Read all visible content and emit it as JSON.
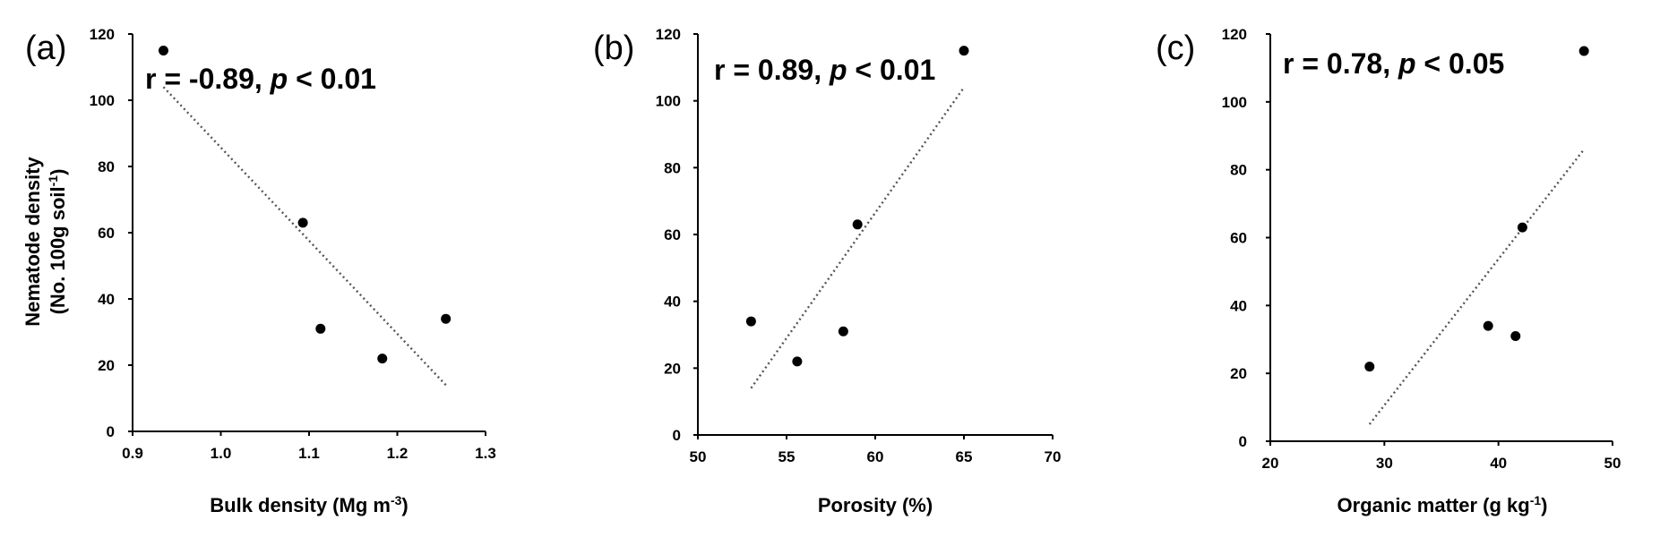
{
  "chart_data": [
    {
      "type": "scatter",
      "panel": "(a)",
      "annotation": {
        "prefix": "r = -0.89, ",
        "italic": "p",
        "suffix": " < 0.01"
      },
      "xlabel": "Bulk density (Mg m",
      "xlabel_sup": "-3",
      "xlabel_end": ")",
      "ylabel": [
        "Nematode density",
        "(No. 100g soil"
      ],
      "ylabel_sup": "-1",
      "ylabel_end": ")",
      "xlim": [
        0.9,
        1.3
      ],
      "ylim": [
        0,
        120
      ],
      "xticks": [
        "0.9",
        "1.0",
        "1.1",
        "1.2",
        "1.3"
      ],
      "yticks": [
        "0",
        "20",
        "40",
        "60",
        "80",
        "100",
        "120"
      ],
      "points": [
        [
          0.935,
          115
        ],
        [
          1.093,
          63
        ],
        [
          1.113,
          31
        ],
        [
          1.183,
          22
        ],
        [
          1.255,
          34
        ]
      ],
      "trendline": [
        [
          0.935,
          104
        ],
        [
          1.255,
          14
        ]
      ]
    },
    {
      "type": "scatter",
      "panel": "(b)",
      "annotation": {
        "prefix": "r = 0.89, ",
        "italic": "p",
        "suffix": " < 0.01"
      },
      "xlabel": "Porosity (%)",
      "xlabel_sup": "",
      "xlabel_end": "",
      "xlim": [
        50,
        70
      ],
      "ylim": [
        0,
        120
      ],
      "xticks": [
        "50",
        "55",
        "60",
        "65",
        "70"
      ],
      "yticks": [
        "0",
        "20",
        "40",
        "60",
        "80",
        "100",
        "120"
      ],
      "points": [
        [
          53.0,
          34
        ],
        [
          55.6,
          22
        ],
        [
          58.2,
          31
        ],
        [
          59.0,
          63
        ],
        [
          65.0,
          115
        ]
      ],
      "trendline": [
        [
          53.0,
          14
        ],
        [
          65.0,
          104
        ]
      ]
    },
    {
      "type": "scatter",
      "panel": "(c)",
      "annotation": {
        "prefix": "r = 0.78, ",
        "italic": "p",
        "suffix": " < 0.05"
      },
      "xlabel": "Organic matter (g kg",
      "xlabel_sup": "-1",
      "xlabel_end": ")",
      "xlim": [
        20,
        50
      ],
      "ylim": [
        0,
        120
      ],
      "xticks": [
        "20",
        "30",
        "40",
        "50"
      ],
      "yticks": [
        "0",
        "20",
        "40",
        "60",
        "80",
        "100",
        "120"
      ],
      "points": [
        [
          28.7,
          22
        ],
        [
          39.1,
          34
        ],
        [
          41.5,
          31
        ],
        [
          42.1,
          63
        ],
        [
          47.5,
          115
        ]
      ],
      "trendline": [
        [
          28.7,
          5
        ],
        [
          47.5,
          86
        ]
      ]
    }
  ]
}
